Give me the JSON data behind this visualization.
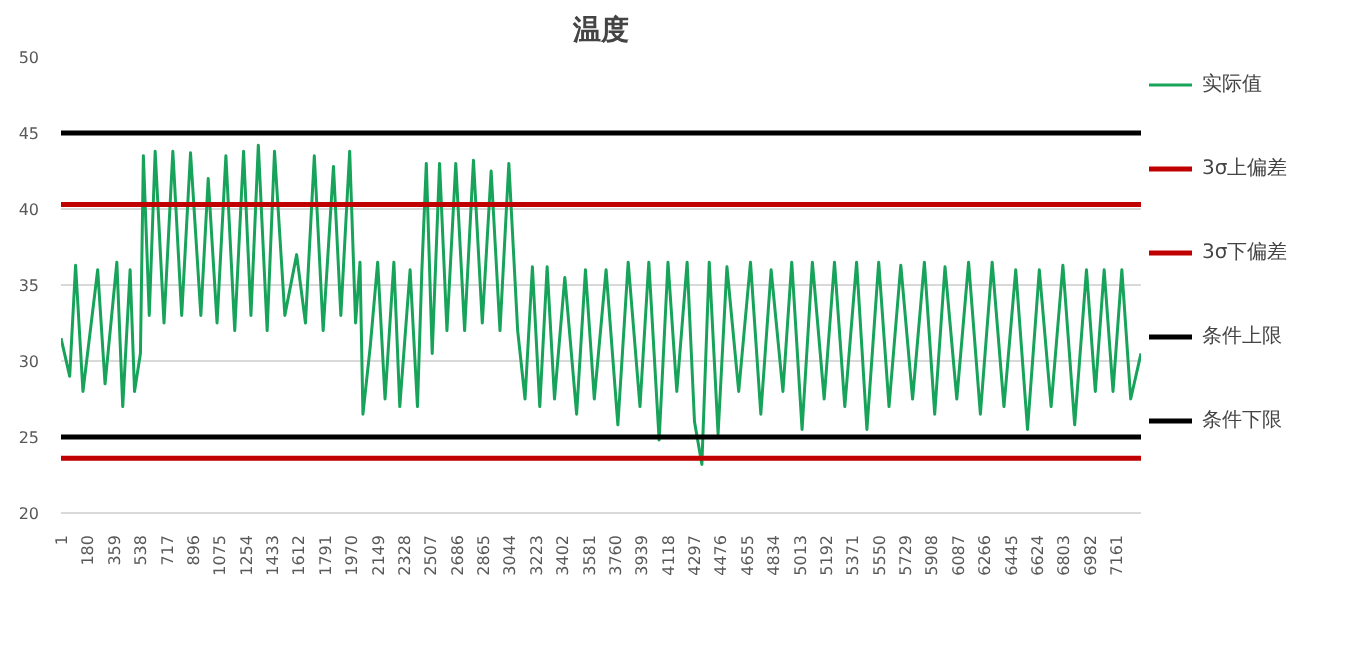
{
  "chart_data": {
    "type": "line",
    "title": "温度",
    "xlim": [
      1,
      7330
    ],
    "xticks": [
      1,
      180,
      359,
      538,
      717,
      896,
      1075,
      1254,
      1433,
      1612,
      1791,
      1970,
      2149,
      2328,
      2507,
      2686,
      2865,
      3044,
      3223,
      3402,
      3581,
      3760,
      3939,
      4118,
      4297,
      4476,
      4655,
      4834,
      5013,
      5192,
      5371,
      5550,
      5729,
      5908,
      6087,
      6266,
      6445,
      6624,
      6803,
      6982,
      7161
    ],
    "ylim": [
      20,
      50
    ],
    "yticks": [
      20,
      25,
      30,
      35,
      40,
      45,
      50
    ],
    "grid": "y",
    "legend": "right",
    "series": [
      {
        "name": "实际值",
        "color": "#17a35a",
        "x": [
          1,
          60,
          100,
          150,
          250,
          300,
          380,
          420,
          470,
          500,
          540,
          560,
          600,
          640,
          700,
          760,
          820,
          880,
          950,
          1000,
          1060,
          1120,
          1180,
          1240,
          1290,
          1340,
          1400,
          1450,
          1520,
          1600,
          1660,
          1720,
          1780,
          1850,
          1900,
          1960,
          2000,
          2030,
          2050,
          2100,
          2150,
          2200,
          2260,
          2300,
          2370,
          2420,
          2450,
          2480,
          2520,
          2570,
          2620,
          2680,
          2740,
          2800,
          2860,
          2920,
          2980,
          3040,
          3100,
          3150,
          3200,
          3250,
          3300,
          3350,
          3420,
          3500,
          3560,
          3620,
          3700,
          3780,
          3850,
          3930,
          3990,
          4060,
          4120,
          4180,
          4250,
          4300,
          4350,
          4400,
          4460,
          4520,
          4600,
          4680,
          4750,
          4820,
          4900,
          4960,
          5030,
          5100,
          5180,
          5250,
          5320,
          5400,
          5470,
          5550,
          5620,
          5700,
          5780,
          5860,
          5930,
          6000,
          6080,
          6160,
          6240,
          6320,
          6400,
          6480,
          6560,
          6640,
          6720,
          6800,
          6880,
          6960,
          7020,
          7080,
          7140,
          7200,
          7260,
          7330
        ],
        "values": [
          31.5,
          29,
          36.3,
          28,
          36,
          28.5,
          36.5,
          27,
          36,
          28,
          30.5,
          43.5,
          33,
          43.8,
          32.5,
          43.8,
          33,
          43.7,
          33,
          42,
          32.5,
          43.5,
          32,
          43.8,
          33,
          44.2,
          32,
          43.8,
          33,
          37,
          32.5,
          43.5,
          32,
          42.8,
          33,
          43.8,
          32.5,
          36.5,
          26.5,
          31,
          36.5,
          27.5,
          36.5,
          27,
          36,
          27,
          36,
          43,
          30.5,
          43,
          32,
          43,
          32,
          43.2,
          32.5,
          42.5,
          32,
          43,
          32,
          27.5,
          36.2,
          27,
          36.2,
          27.5,
          35.5,
          26.5,
          36,
          27.5,
          36,
          25.8,
          36.5,
          27,
          36.5,
          24.8,
          36.5,
          28,
          36.5,
          26,
          23.2,
          36.5,
          25.2,
          36.2,
          28,
          36.5,
          26.5,
          36,
          28,
          36.5,
          25.5,
          36.5,
          27.5,
          36.5,
          27,
          36.5,
          25.5,
          36.5,
          27,
          36.3,
          27.5,
          36.5,
          26.5,
          36.2,
          27.5,
          36.5,
          26.5,
          36.5,
          27,
          36,
          25.5,
          36,
          27,
          36.3,
          25.8,
          36,
          28,
          36,
          28,
          36,
          27.5,
          30.5
        ]
      },
      {
        "name": "3σ上偏差",
        "color": "#c00000",
        "x": [
          1,
          7330
        ],
        "values": [
          40.3,
          40.3
        ]
      },
      {
        "name": "3σ下偏差",
        "color": "#c00000",
        "x": [
          1,
          7330
        ],
        "values": [
          23.6,
          23.6
        ]
      },
      {
        "name": "条件上限",
        "color": "#000000",
        "x": [
          1,
          7330
        ],
        "values": [
          45,
          45
        ]
      },
      {
        "name": "条件下限",
        "color": "#000000",
        "x": [
          1,
          7330
        ],
        "values": [
          25,
          25
        ]
      }
    ]
  }
}
